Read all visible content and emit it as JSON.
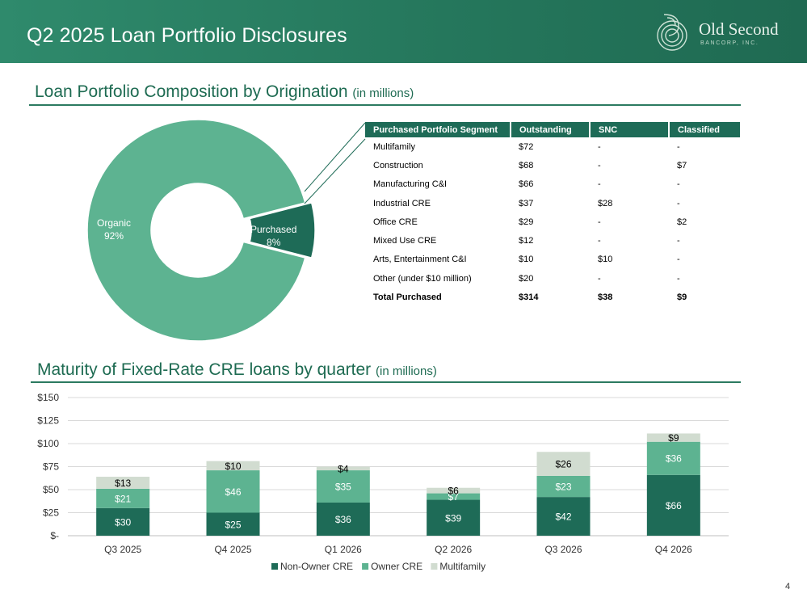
{
  "header": {
    "title": "Q2 2025 Loan Portfolio Disclosures",
    "logo_name": "Old Second",
    "logo_sub": "BANCORP, INC."
  },
  "section1": {
    "title": "Loan Portfolio Composition by Origination",
    "subtitle": "(in millions)"
  },
  "section2": {
    "title": "Maturity of Fixed-Rate CRE loans by quarter",
    "subtitle": "(in millions)"
  },
  "table": {
    "headers": [
      "Purchased Portfolio Segment",
      "Outstanding",
      "SNC",
      "Classified"
    ],
    "rows": [
      [
        "Multifamily",
        "$72",
        "-",
        "-"
      ],
      [
        "Construction",
        "$68",
        "-",
        "$7"
      ],
      [
        "Manufacturing C&I",
        "$66",
        "-",
        "-"
      ],
      [
        "Industrial CRE",
        "$37",
        "$28",
        "-"
      ],
      [
        "Office CRE",
        "$29",
        "-",
        "$2"
      ],
      [
        "Mixed Use CRE",
        "$12",
        "-",
        "-"
      ],
      [
        "Arts, Entertainment C&I",
        "$10",
        "$10",
        "-"
      ],
      [
        "Other (under $10 million)",
        "$20",
        "-",
        "-"
      ]
    ],
    "total": [
      "Total Purchased",
      "$314",
      "$38",
      "$9"
    ]
  },
  "page_number": "4",
  "colors": {
    "organic": "#5db391",
    "purchased": "#1e6b57",
    "non_owner": "#1e6b57",
    "owner": "#5db391",
    "multifamily": "#d1dcd0"
  },
  "chart_data": [
    {
      "type": "pie",
      "subtype": "donut",
      "labels": [
        "Organic",
        "Purchased"
      ],
      "values": [
        92,
        8
      ],
      "value_labels": [
        "92%",
        "8%"
      ]
    },
    {
      "type": "bar",
      "stacked": true,
      "categories": [
        "Q3 2025",
        "Q4 2025",
        "Q1 2026",
        "Q2 2026",
        "Q3 2026",
        "Q4 2026"
      ],
      "series": [
        {
          "name": "Non-Owner CRE",
          "values": [
            30,
            25,
            36,
            39,
            42,
            66
          ],
          "labels": [
            "$30",
            "$25",
            "$36",
            "$39",
            "$42",
            "$66"
          ]
        },
        {
          "name": "Owner CRE",
          "values": [
            21,
            46,
            35,
            7,
            23,
            36
          ],
          "labels": [
            "$21",
            "$46",
            "$35",
            "$7",
            "$23",
            "$36"
          ]
        },
        {
          "name": "Multifamily",
          "values": [
            13,
            10,
            4,
            6,
            26,
            9
          ],
          "labels": [
            "$13",
            "$10",
            "$4",
            "$6",
            "$26",
            "$9"
          ]
        }
      ],
      "ylim": [
        0,
        150
      ],
      "yticks": [
        0,
        25,
        50,
        75,
        100,
        125,
        150
      ],
      "ytick_labels": [
        "$-",
        "$25",
        "$50",
        "$75",
        "$100",
        "$125",
        "$150"
      ],
      "grid": true,
      "legend": "bottom"
    }
  ]
}
